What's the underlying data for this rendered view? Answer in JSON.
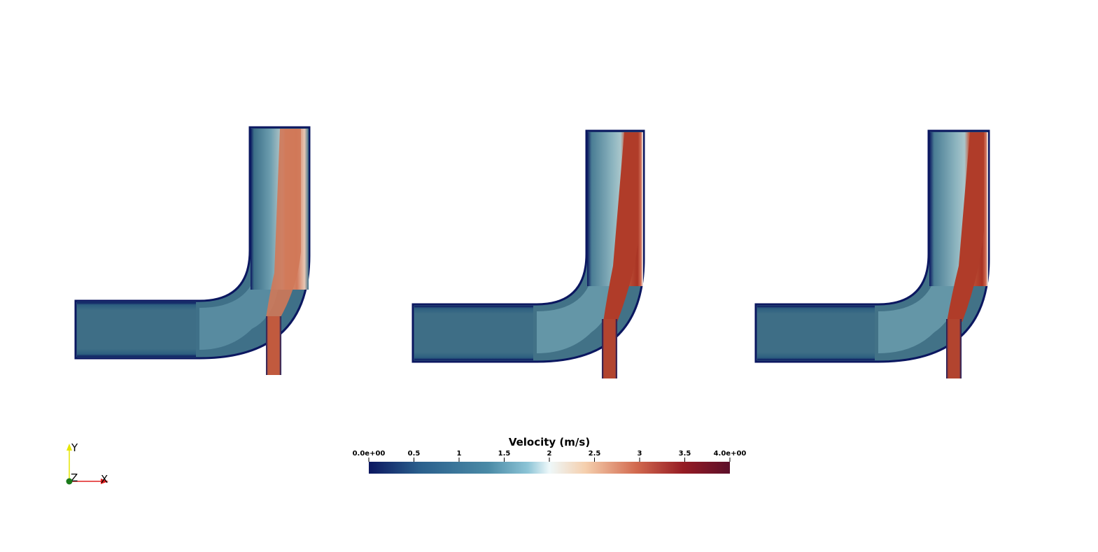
{
  "colorbar": {
    "title": "Velocity (m/s)",
    "range": [
      0,
      4
    ],
    "ticks": [
      {
        "value": 0,
        "label": "0.0e+00"
      },
      {
        "value": 0.5,
        "label": "0.5"
      },
      {
        "value": 1,
        "label": "1"
      },
      {
        "value": 1.5,
        "label": "1.5"
      },
      {
        "value": 2,
        "label": "2"
      },
      {
        "value": 2.5,
        "label": "2.5"
      },
      {
        "value": 3,
        "label": "3"
      },
      {
        "value": 3.5,
        "label": "3.5"
      },
      {
        "value": 4,
        "label": "4.0e+00"
      }
    ],
    "colormap": [
      "#0b1760",
      "#2a5f8c",
      "#6aa8c0",
      "#eef8fa",
      "#f5cfad",
      "#d26a4f",
      "#961c24",
      "#5c0f2a"
    ]
  },
  "orientation_axes": {
    "y_label": "Y",
    "z_label": "Z",
    "x_label": "X",
    "y_color": "#e6e600",
    "z_color": "#1a7a1a",
    "x_color": "#e02020"
  },
  "panels": [
    {
      "name": "panel-1",
      "jet_velocity": 2.7,
      "bulk_velocity": 1.2
    },
    {
      "name": "panel-2",
      "jet_velocity": 3.3,
      "bulk_velocity": 1.25
    },
    {
      "name": "panel-3",
      "jet_velocity": 3.3,
      "bulk_velocity": 1.25
    }
  ]
}
